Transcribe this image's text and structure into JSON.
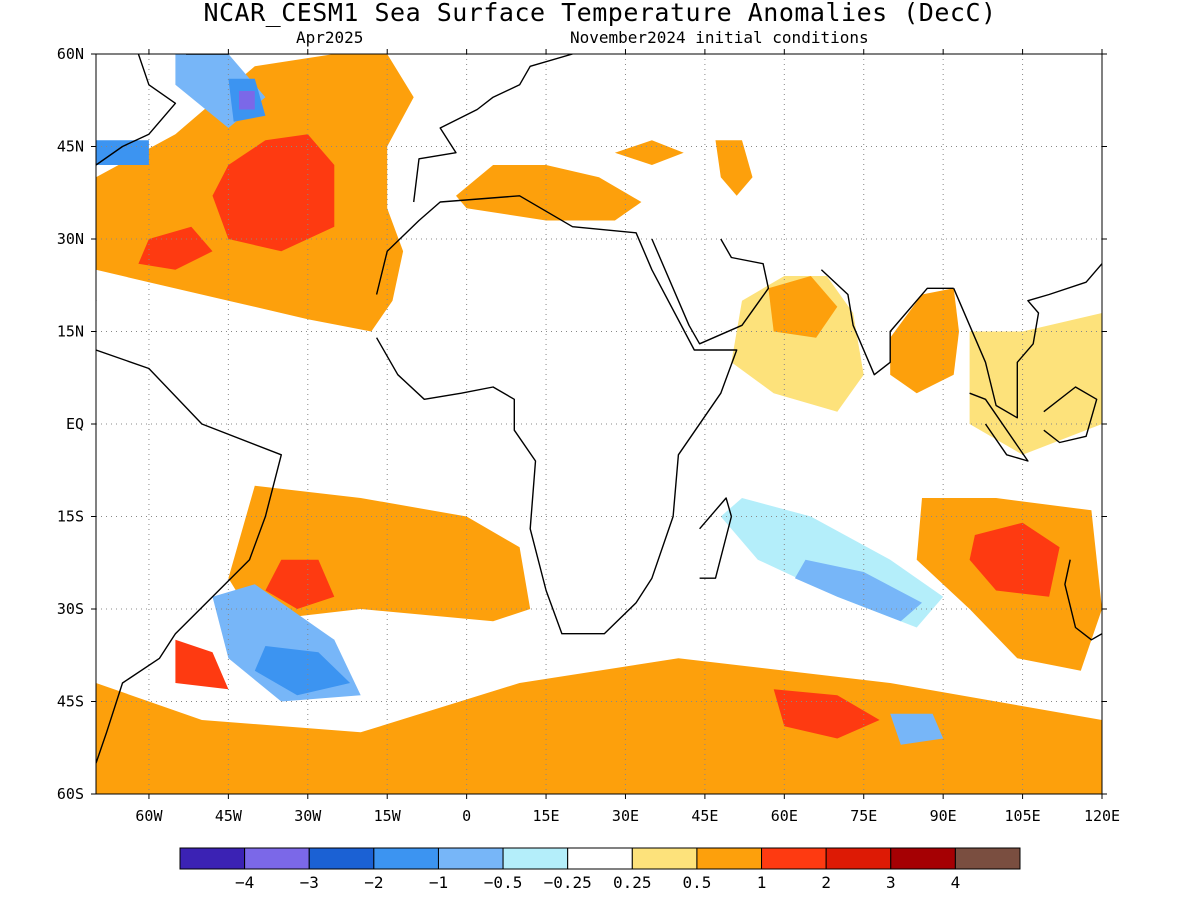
{
  "title": "NCAR_CESM1 Sea Surface Temperature Anomalies (DecC)",
  "subtitle_left": "Apr2025",
  "subtitle_right": "November2024 initial conditions",
  "map": {
    "lon_range": [
      -70,
      120
    ],
    "lat_range": [
      -60,
      60
    ],
    "lon_ticks": [
      "60W",
      "45W",
      "30W",
      "15W",
      "0",
      "15E",
      "30E",
      "45E",
      "60E",
      "75E",
      "90E",
      "105E",
      "120E"
    ],
    "lat_ticks": [
      "60N",
      "45N",
      "30N",
      "15N",
      "EQ",
      "15S",
      "30S",
      "45S",
      "60S"
    ],
    "grid": true,
    "background_color": "#ffffff"
  },
  "colorbar": {
    "colors": [
      "#3b22b4",
      "#7b68e8",
      "#1b61d4",
      "#3c94f1",
      "#77b6f8",
      "#b4eefa",
      "#ffffff",
      "#fde27b",
      "#fda00c",
      "#fe3a11",
      "#dd1a05",
      "#a50003",
      "#7a4e40"
    ],
    "labels": [
      "−4",
      "−3",
      "−2",
      "−1",
      "−0.5",
      "−0.25",
      "0.25",
      "0.5",
      "1",
      "2",
      "3",
      "4"
    ]
  },
  "anomaly_regions": [
    {
      "name": "N Atlantic warm",
      "color": "#fda00c",
      "pts": [
        [
          -70,
          40
        ],
        [
          -55,
          47
        ],
        [
          -40,
          58
        ],
        [
          -25,
          60
        ],
        [
          -15,
          60
        ],
        [
          -10,
          53
        ],
        [
          -15,
          45
        ],
        [
          -15,
          35
        ],
        [
          -12,
          28
        ],
        [
          -14,
          20
        ],
        [
          -18,
          15
        ],
        [
          -30,
          17
        ],
        [
          -45,
          20
        ],
        [
          -60,
          23
        ],
        [
          -70,
          25
        ]
      ]
    },
    {
      "name": "N Atlantic strong warm",
      "color": "#fe3a11",
      "pts": [
        [
          -45,
          42
        ],
        [
          -38,
          46
        ],
        [
          -30,
          47
        ],
        [
          -25,
          42
        ],
        [
          -25,
          32
        ],
        [
          -35,
          28
        ],
        [
          -45,
          30
        ],
        [
          -48,
          37
        ]
      ]
    },
    {
      "name": "N Atlantic strong warm west",
      "color": "#fe3a11",
      "pts": [
        [
          -60,
          30
        ],
        [
          -52,
          32
        ],
        [
          -48,
          28
        ],
        [
          -55,
          25
        ],
        [
          -62,
          26
        ]
      ]
    },
    {
      "name": "Labrador cold",
      "color": "#77b6f8",
      "pts": [
        [
          -55,
          60
        ],
        [
          -45,
          60
        ],
        [
          -38,
          53
        ],
        [
          -45,
          48
        ],
        [
          -55,
          55
        ]
      ]
    },
    {
      "name": "Labrador strong cold",
      "color": "#3c94f1",
      "pts": [
        [
          -45,
          56
        ],
        [
          -40,
          56
        ],
        [
          -38,
          50
        ],
        [
          -44,
          49
        ]
      ]
    },
    {
      "name": "Labrador core",
      "color": "#7b68e8",
      "pts": [
        [
          -43,
          54
        ],
        [
          -40,
          54
        ],
        [
          -40,
          51
        ],
        [
          -43,
          51
        ]
      ]
    },
    {
      "name": "NW Atlantic cold",
      "color": "#3c94f1",
      "pts": [
        [
          -70,
          46
        ],
        [
          -60,
          46
        ],
        [
          -60,
          42
        ],
        [
          -70,
          42
        ]
      ]
    },
    {
      "name": "Mediterranean warm",
      "color": "#fda00c",
      "pts": [
        [
          -2,
          37
        ],
        [
          5,
          42
        ],
        [
          15,
          42
        ],
        [
          25,
          40
        ],
        [
          33,
          36
        ],
        [
          28,
          33
        ],
        [
          15,
          33
        ],
        [
          0,
          35
        ]
      ]
    },
    {
      "name": "Black Sea warm",
      "color": "#fda00c",
      "pts": [
        [
          28,
          44
        ],
        [
          35,
          46
        ],
        [
          41,
          44
        ],
        [
          35,
          42
        ]
      ]
    },
    {
      "name": "Caspian warm",
      "color": "#fda00c",
      "pts": [
        [
          47,
          46
        ],
        [
          52,
          46
        ],
        [
          54,
          40
        ],
        [
          51,
          37
        ],
        [
          48,
          40
        ]
      ]
    },
    {
      "name": "Arabian Sea warm",
      "color": "#fde27b",
      "pts": [
        [
          52,
          20
        ],
        [
          60,
          24
        ],
        [
          68,
          24
        ],
        [
          73,
          18
        ],
        [
          75,
          8
        ],
        [
          70,
          2
        ],
        [
          58,
          5
        ],
        [
          50,
          10
        ]
      ]
    },
    {
      "name": "Arabian Sea orange",
      "color": "#fda00c",
      "pts": [
        [
          57,
          22
        ],
        [
          65,
          24
        ],
        [
          70,
          19
        ],
        [
          66,
          14
        ],
        [
          58,
          15
        ]
      ]
    },
    {
      "name": "Bay of Bengal warm",
      "color": "#fda00c",
      "pts": [
        [
          80,
          14
        ],
        [
          86,
          21
        ],
        [
          92,
          22
        ],
        [
          93,
          15
        ],
        [
          92,
          8
        ],
        [
          85,
          5
        ],
        [
          80,
          8
        ]
      ]
    },
    {
      "name": "E Indian warm",
      "color": "#fde27b",
      "pts": [
        [
          95,
          15
        ],
        [
          105,
          15
        ],
        [
          120,
          18
        ],
        [
          120,
          0
        ],
        [
          105,
          -5
        ],
        [
          95,
          0
        ]
      ]
    },
    {
      "name": "Central Indian cold",
      "color": "#b4eefa",
      "pts": [
        [
          52,
          -12
        ],
        [
          65,
          -15
        ],
        [
          80,
          -22
        ],
        [
          90,
          -28
        ],
        [
          85,
          -33
        ],
        [
          70,
          -28
        ],
        [
          55,
          -22
        ],
        [
          48,
          -15
        ]
      ]
    },
    {
      "name": "Central Indian cold core",
      "color": "#77b6f8",
      "pts": [
        [
          64,
          -22
        ],
        [
          75,
          -24
        ],
        [
          86,
          -29
        ],
        [
          82,
          -32
        ],
        [
          70,
          -28
        ],
        [
          62,
          -25
        ]
      ]
    },
    {
      "name": "SE Indian warm",
      "color": "#fda00c",
      "pts": [
        [
          86,
          -12
        ],
        [
          100,
          -12
        ],
        [
          118,
          -14
        ],
        [
          120,
          -30
        ],
        [
          116,
          -40
        ],
        [
          104,
          -38
        ],
        [
          95,
          -30
        ],
        [
          85,
          -22
        ]
      ]
    },
    {
      "name": "SE Indian strong warm",
      "color": "#fe3a11",
      "pts": [
        [
          96,
          -18
        ],
        [
          105,
          -16
        ],
        [
          112,
          -20
        ],
        [
          110,
          -28
        ],
        [
          100,
          -27
        ],
        [
          95,
          -22
        ]
      ]
    },
    {
      "name": "S Atlantic warm",
      "color": "#fda00c",
      "pts": [
        [
          -40,
          -10
        ],
        [
          -20,
          -12
        ],
        [
          0,
          -15
        ],
        [
          10,
          -20
        ],
        [
          12,
          -30
        ],
        [
          5,
          -32
        ],
        [
          -20,
          -30
        ],
        [
          -40,
          -32
        ],
        [
          -45,
          -25
        ]
      ]
    },
    {
      "name": "S Atlantic strong warm",
      "color": "#fe3a11",
      "pts": [
        [
          -35,
          -22
        ],
        [
          -28,
          -22
        ],
        [
          -25,
          -28
        ],
        [
          -32,
          -30
        ],
        [
          -38,
          -27
        ]
      ]
    },
    {
      "name": "SW Atlantic cold",
      "color": "#77b6f8",
      "pts": [
        [
          -48,
          -28
        ],
        [
          -40,
          -26
        ],
        [
          -25,
          -35
        ],
        [
          -20,
          -44
        ],
        [
          -35,
          -45
        ],
        [
          -45,
          -38
        ]
      ]
    },
    {
      "name": "Brazil-Malvinas cold core",
      "color": "#3c94f1",
      "pts": [
        [
          -38,
          -36
        ],
        [
          -28,
          -37
        ],
        [
          -22,
          -42
        ],
        [
          -32,
          -44
        ],
        [
          -40,
          -40
        ]
      ]
    },
    {
      "name": "SW Atlantic warm patch",
      "color": "#fe3a11",
      "pts": [
        [
          -55,
          -35
        ],
        [
          -48,
          -37
        ],
        [
          -45,
          -43
        ],
        [
          -55,
          -42
        ]
      ]
    },
    {
      "name": "Southern Ocean warm",
      "color": "#fda00c",
      "pts": [
        [
          -70,
          -42
        ],
        [
          -50,
          -48
        ],
        [
          -20,
          -50
        ],
        [
          10,
          -42
        ],
        [
          40,
          -38
        ],
        [
          80,
          -42
        ],
        [
          120,
          -48
        ],
        [
          120,
          -60
        ],
        [
          -70,
          -60
        ]
      ]
    },
    {
      "name": "Southern Ocean strong warm",
      "color": "#fe3a11",
      "pts": [
        [
          58,
          -43
        ],
        [
          70,
          -44
        ],
        [
          78,
          -48
        ],
        [
          70,
          -51
        ],
        [
          60,
          -49
        ]
      ]
    },
    {
      "name": "Southern Ocean cold blob",
      "color": "#77b6f8",
      "pts": [
        [
          80,
          -47
        ],
        [
          88,
          -47
        ],
        [
          90,
          -51
        ],
        [
          82,
          -52
        ]
      ]
    }
  ],
  "coastlines": [
    {
      "name": "Africa",
      "pts": [
        [
          -17,
          21
        ],
        [
          -15,
          28
        ],
        [
          -9,
          33
        ],
        [
          -5,
          36
        ],
        [
          10,
          37
        ],
        [
          20,
          32
        ],
        [
          32,
          31
        ],
        [
          35,
          25
        ],
        [
          43,
          12
        ],
        [
          51,
          12
        ],
        [
          48,
          5
        ],
        [
          40,
          -5
        ],
        [
          39,
          -15
        ],
        [
          35,
          -25
        ],
        [
          32,
          -29
        ],
        [
          26,
          -34
        ],
        [
          18,
          -34
        ],
        [
          15,
          -27
        ],
        [
          12,
          -17
        ],
        [
          13,
          -6
        ],
        [
          9,
          -1
        ],
        [
          9,
          4
        ],
        [
          5,
          6
        ],
        [
          -1,
          5
        ],
        [
          -8,
          4
        ],
        [
          -13,
          8
        ],
        [
          -17,
          14
        ]
      ]
    },
    {
      "name": "South America",
      "pts": [
        [
          -70,
          12
        ],
        [
          -60,
          9
        ],
        [
          -50,
          0
        ],
        [
          -35,
          -5
        ],
        [
          -38,
          -15
        ],
        [
          -41,
          -22
        ],
        [
          -48,
          -28
        ],
        [
          -55,
          -34
        ],
        [
          -58,
          -38
        ],
        [
          -65,
          -42
        ],
        [
          -68,
          -50
        ],
        [
          -70,
          -55
        ]
      ]
    },
    {
      "name": "Europe",
      "pts": [
        [
          -10,
          36
        ],
        [
          -9,
          43
        ],
        [
          -2,
          44
        ],
        [
          -5,
          48
        ],
        [
          2,
          51
        ],
        [
          5,
          53
        ],
        [
          10,
          55
        ],
        [
          12,
          58
        ],
        [
          20,
          60
        ]
      ]
    },
    {
      "name": "Arabia",
      "pts": [
        [
          35,
          30
        ],
        [
          42,
          16
        ],
        [
          44,
          13
        ],
        [
          52,
          16
        ],
        [
          57,
          22
        ],
        [
          56,
          26
        ],
        [
          50,
          27
        ],
        [
          48,
          30
        ]
      ]
    },
    {
      "name": "India",
      "pts": [
        [
          67,
          25
        ],
        [
          72,
          21
        ],
        [
          73,
          16
        ],
        [
          77,
          8
        ],
        [
          80,
          10
        ],
        [
          80,
          15
        ],
        [
          87,
          22
        ],
        [
          92,
          22
        ]
      ]
    },
    {
      "name": "SE Asia",
      "pts": [
        [
          92,
          22
        ],
        [
          95,
          16
        ],
        [
          98,
          10
        ],
        [
          100,
          3
        ],
        [
          104,
          1
        ],
        [
          104,
          10
        ],
        [
          107,
          13
        ],
        [
          108,
          18
        ],
        [
          106,
          20
        ],
        [
          110,
          21
        ],
        [
          117,
          23
        ],
        [
          120,
          26
        ]
      ]
    },
    {
      "name": "Madagascar",
      "pts": [
        [
          44,
          -25
        ],
        [
          47,
          -25
        ],
        [
          50,
          -15
        ],
        [
          49,
          -12
        ],
        [
          44,
          -17
        ]
      ]
    },
    {
      "name": "North America",
      "pts": [
        [
          -70,
          20
        ],
        [
          -75,
          35
        ],
        [
          -70,
          42
        ],
        [
          -65,
          45
        ],
        [
          -60,
          47
        ],
        [
          -55,
          52
        ],
        [
          -60,
          55
        ],
        [
          -62,
          60
        ]
      ]
    },
    {
      "name": "Greenland",
      "pts": [
        [
          -53,
          60
        ],
        [
          -45,
          60
        ],
        [
          -42,
          62
        ]
      ]
    },
    {
      "name": "Sumatra",
      "pts": [
        [
          95,
          5
        ],
        [
          98,
          4
        ],
        [
          106,
          -6
        ],
        [
          102,
          -5
        ],
        [
          98,
          0
        ]
      ]
    },
    {
      "name": "Borneo",
      "pts": [
        [
          109,
          2
        ],
        [
          115,
          6
        ],
        [
          119,
          4
        ],
        [
          117,
          -2
        ],
        [
          112,
          -3
        ],
        [
          109,
          -1
        ]
      ]
    },
    {
      "name": "Australia",
      "pts": [
        [
          114,
          -22
        ],
        [
          113,
          -26
        ],
        [
          115,
          -33
        ],
        [
          118,
          -35
        ],
        [
          120,
          -34
        ]
      ]
    }
  ]
}
